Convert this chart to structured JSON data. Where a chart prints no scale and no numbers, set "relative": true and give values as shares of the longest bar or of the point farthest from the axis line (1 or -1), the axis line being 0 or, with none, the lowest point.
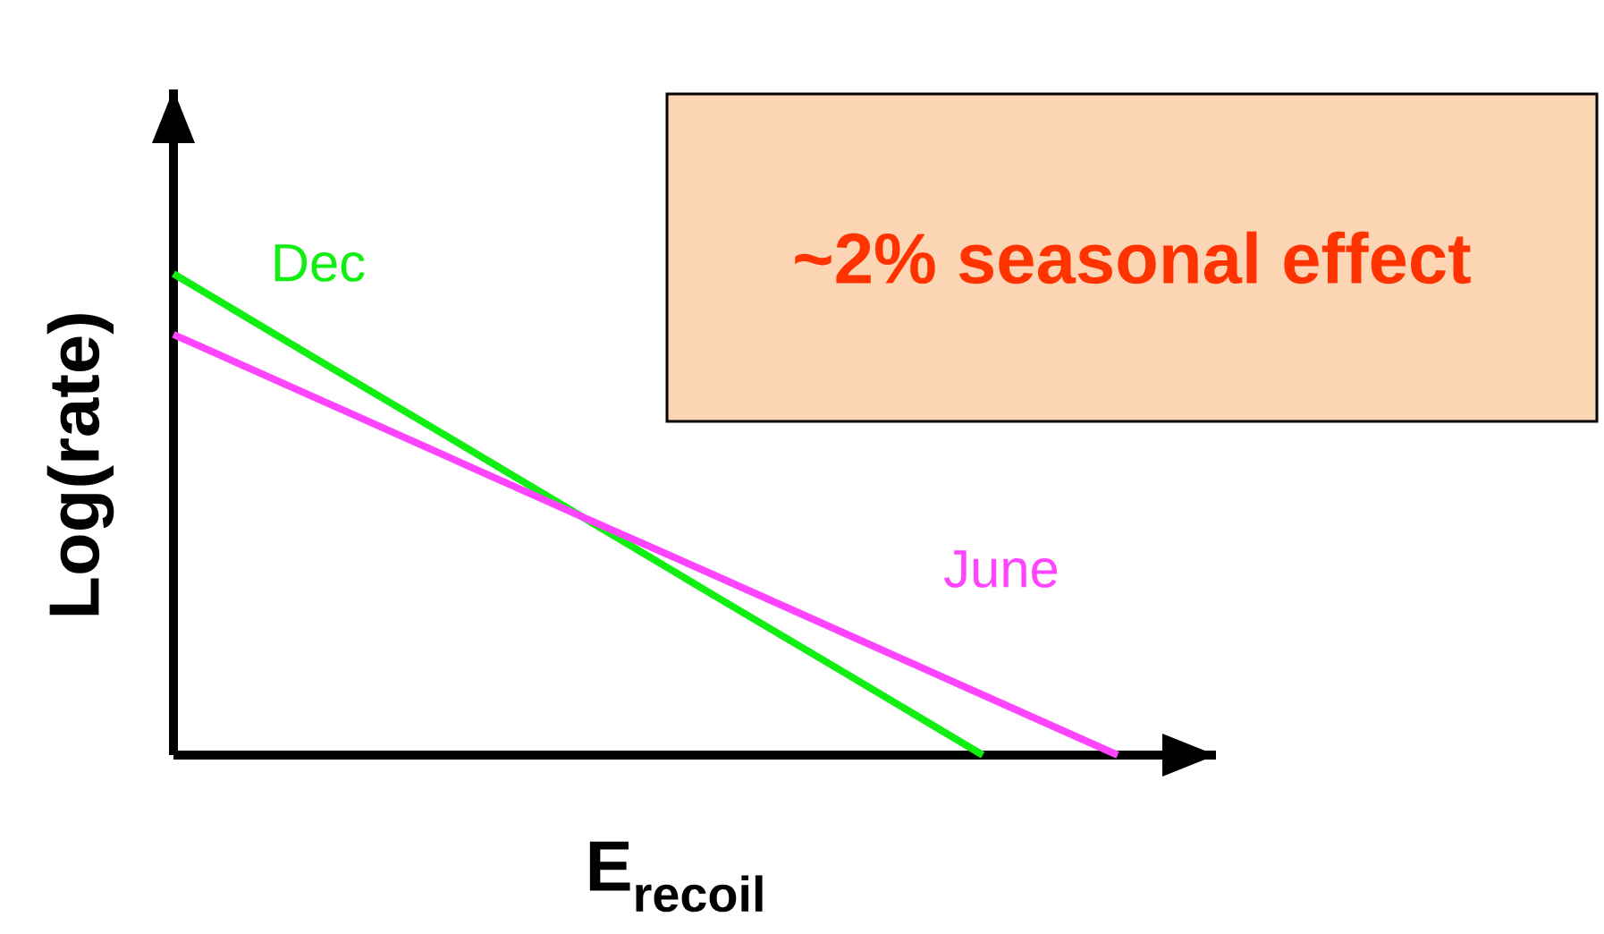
{
  "chart_data": {
    "type": "line",
    "relative": true,
    "xlabel": "E$_{recoil}$",
    "ylabel": "Log(rate)",
    "categories": [
      null,
      null,
      null,
      null,
      null,
      null,
      null,
      null
    ],
    "series": [
      {
        "name": "Dec",
        "color": "#11ee11",
        "values": [
          1,
          0.833,
          0.667,
          0.5,
          0.333,
          0.167,
          0,
          null
        ]
      },
      {
        "name": "June",
        "color": "#ff44ff",
        "values": [
          0.874,
          0.749,
          0.624,
          0.499,
          0.375,
          0.25,
          0.125,
          0
        ]
      }
    ],
    "annotations": [
      "~2% seasonal effect"
    ]
  }
}
